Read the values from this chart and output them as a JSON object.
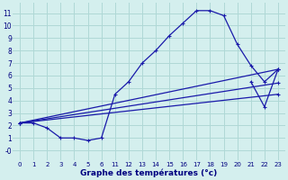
{
  "title": "Graphe des températures (°c)",
  "background_color": "#d4efee",
  "grid_color": "#afd8d6",
  "line_color": "#1a1aaa",
  "x_labels": [
    "0",
    "1",
    "2",
    "3",
    "4",
    "5",
    "6",
    "11",
    "12",
    "13",
    "14",
    "15",
    "16",
    "17",
    "18",
    "19",
    "20",
    "21",
    "22",
    "23"
  ],
  "ylim": [
    -0.8,
    11.8
  ],
  "y_ticks": [
    0,
    1,
    2,
    3,
    4,
    5,
    6,
    7,
    8,
    9,
    10,
    11
  ],
  "line1_xi": [
    0,
    1,
    2,
    3,
    4,
    5,
    6,
    7,
    8,
    9,
    10,
    11,
    12,
    13,
    14,
    15,
    16,
    17,
    18,
    19
  ],
  "line1_y": [
    2.2,
    2.2,
    1.8,
    1.0,
    1.0,
    0.8,
    1.0,
    4.5,
    5.5,
    7.0,
    8.0,
    9.2,
    10.2,
    11.2,
    11.2,
    10.8,
    8.5,
    6.8,
    5.5,
    6.5
  ],
  "line2_xi": [
    0,
    19
  ],
  "line2_y": [
    2.2,
    6.5
  ],
  "line3_xi": [
    0,
    19
  ],
  "line3_y": [
    2.2,
    5.4
  ],
  "line4_xi": [
    0,
    19
  ],
  "line4_y": [
    2.2,
    4.5
  ],
  "line5_xi": [
    17,
    18,
    19
  ],
  "line5_y": [
    5.5,
    3.5,
    6.5
  ],
  "line2_markers": [
    0,
    19
  ],
  "line3_markers": [
    0,
    19
  ],
  "line4_markers": [
    0,
    19
  ]
}
